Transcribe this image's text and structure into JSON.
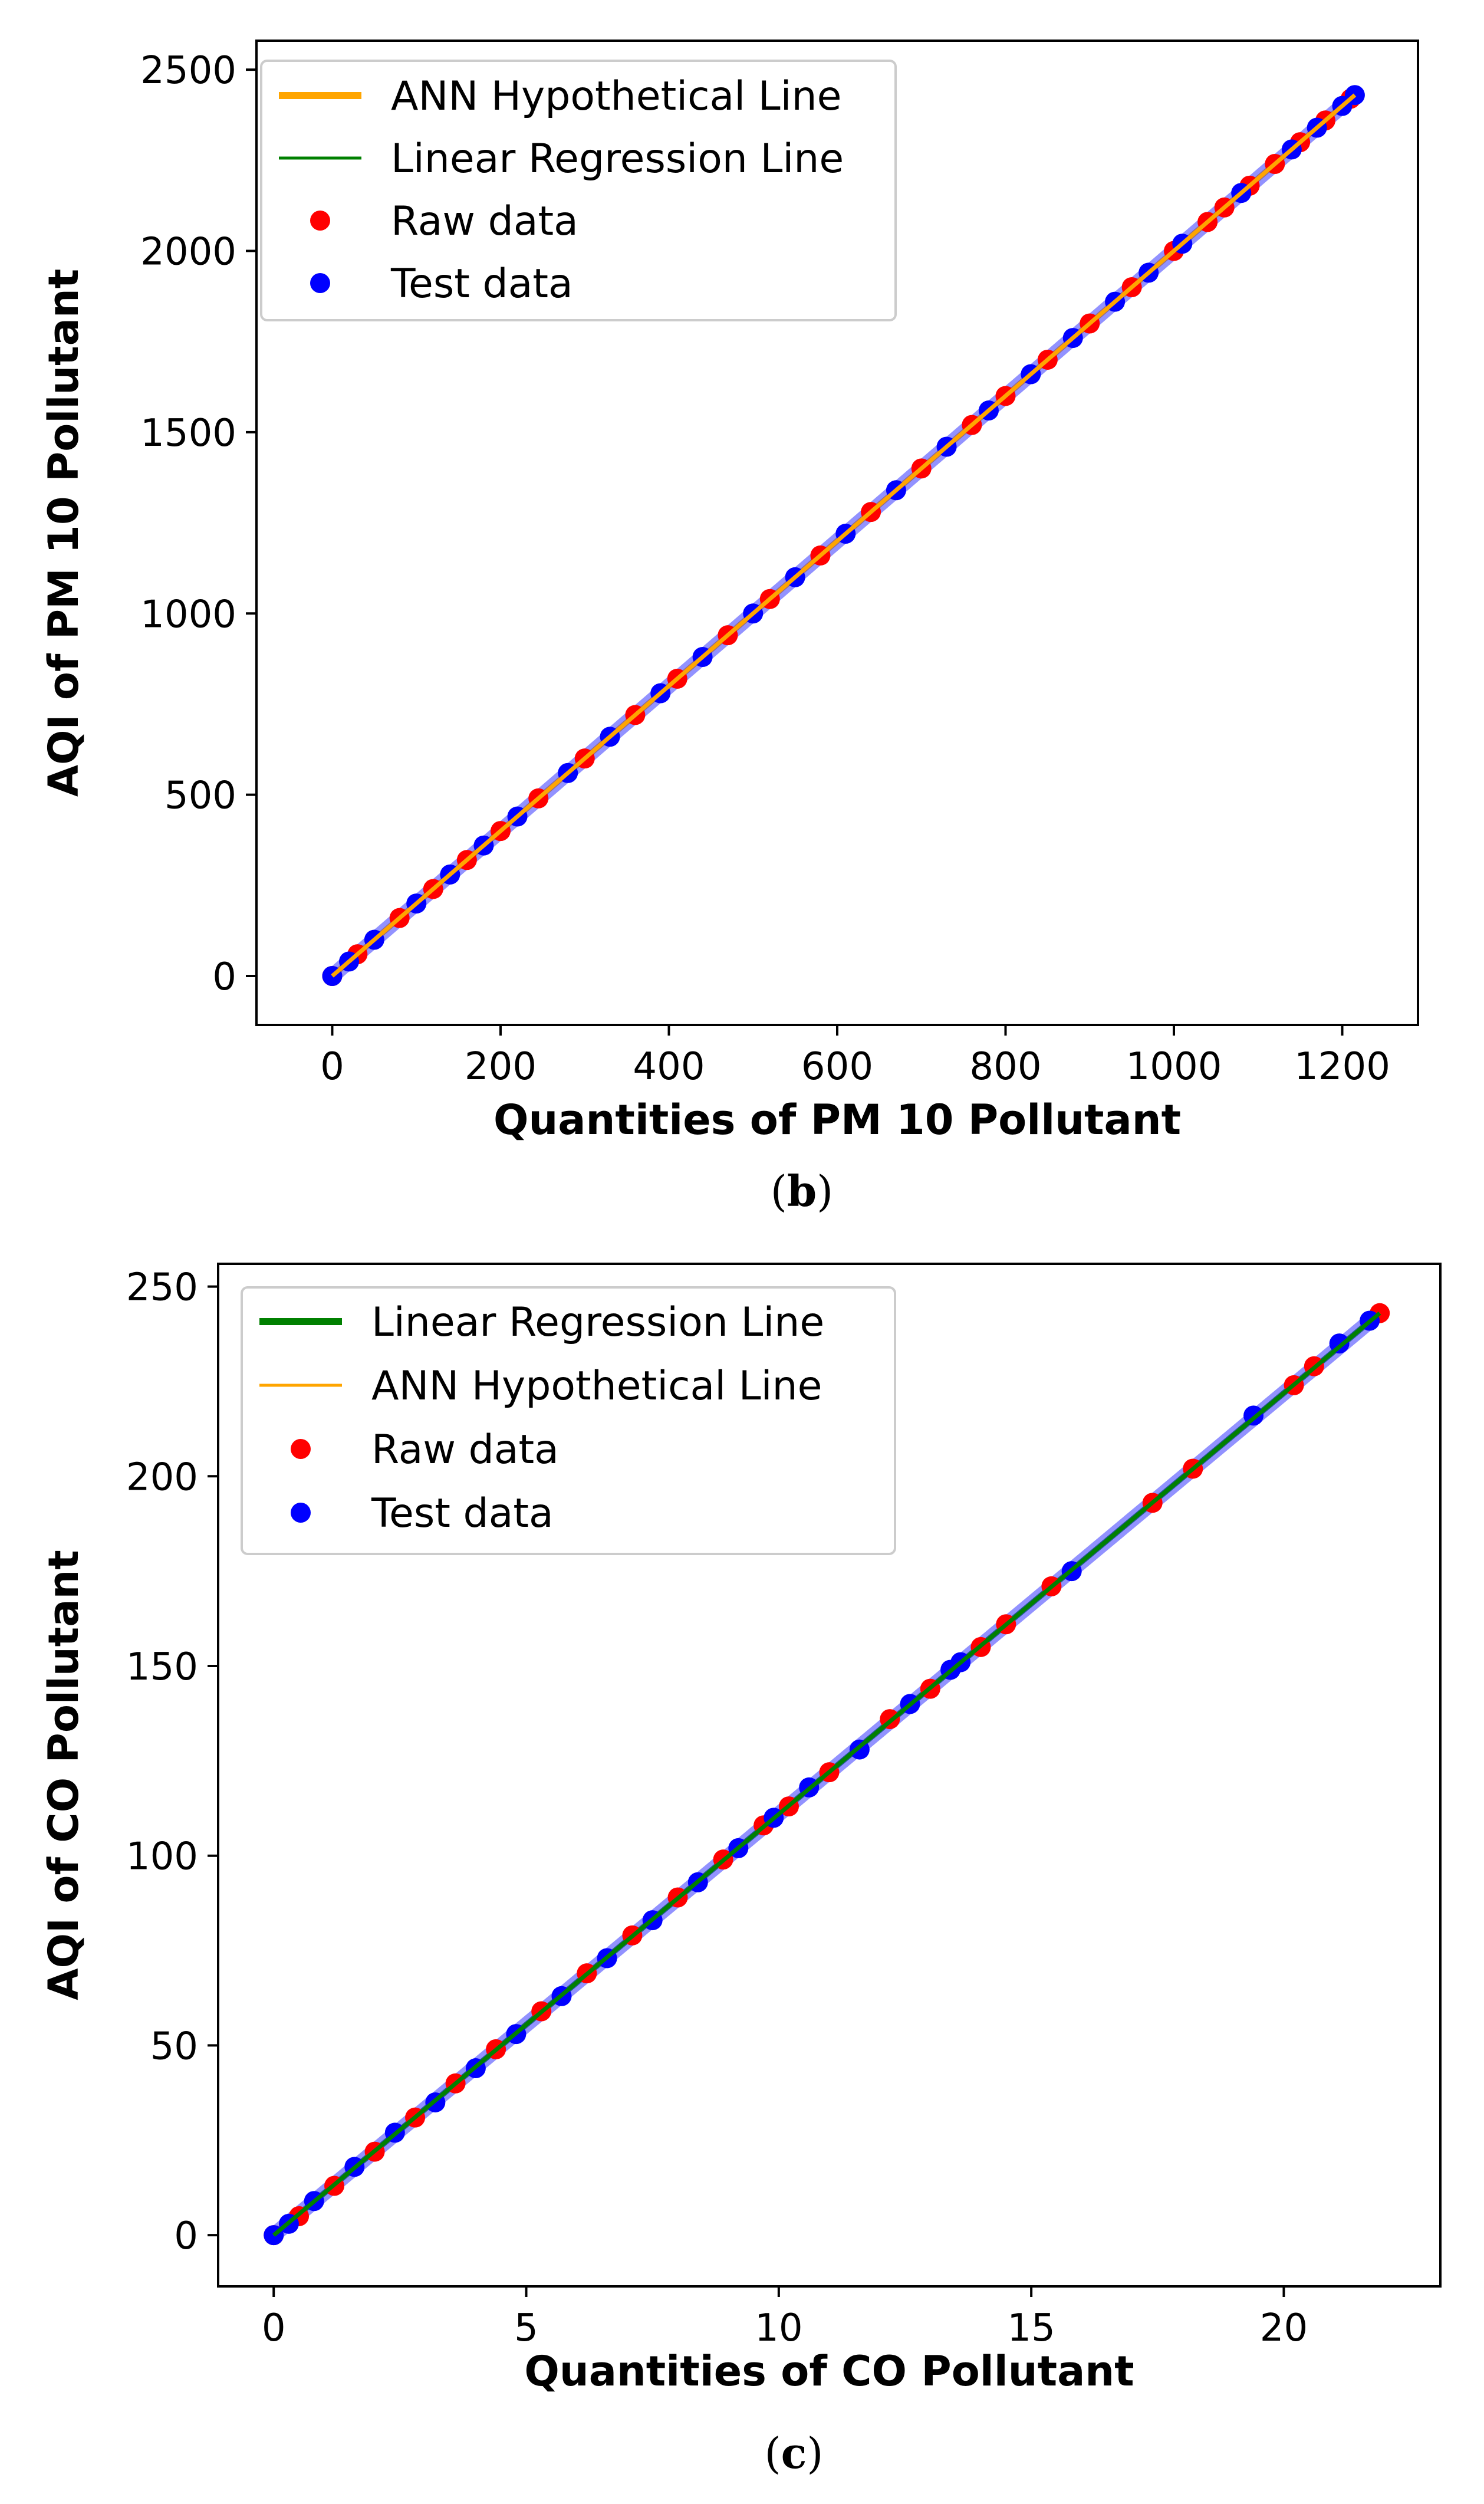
{
  "chart_data": [
    {
      "type": "scatter",
      "panel_label": "b",
      "caption_open": "(",
      "caption_close": ")",
      "xlabel": "Quantities of PM 10 Pollutant",
      "ylabel": "AQI of PM 10 Pollutant",
      "xlim": [
        -90,
        1290
      ],
      "ylim": [
        -135,
        2580
      ],
      "xticks": [
        0,
        200,
        400,
        600,
        800,
        1000,
        1200
      ],
      "yticks": [
        0,
        500,
        1000,
        1500,
        2000,
        2500
      ],
      "grid": false,
      "legend_position": "top-left",
      "legend": [
        {
          "label": "ANN Hypothetical Line",
          "kind": "line",
          "color": "#ffa500",
          "weight": "thick"
        },
        {
          "label": "Linear Regression Line",
          "kind": "line",
          "color": "#008000",
          "weight": "thin"
        },
        {
          "label": "Raw data",
          "kind": "marker",
          "color": "#ff0000"
        },
        {
          "label": "Test data",
          "kind": "marker",
          "color": "#0000ff"
        }
      ],
      "lines": [
        {
          "name": "ANN Hypothetical Line",
          "color": "#ffa500",
          "x": [
            0,
            1215
          ],
          "y": [
            0,
            2430
          ]
        },
        {
          "name": "Linear Regression Line",
          "color": "#008000",
          "x": [
            0,
            1215
          ],
          "y": [
            0,
            2430
          ]
        }
      ],
      "series": [
        {
          "name": "Raw data",
          "color": "#ff0000",
          "x": [
            0,
            30,
            80,
            120,
            160,
            200,
            245,
            300,
            360,
            410,
            470,
            520,
            580,
            640,
            700,
            760,
            800,
            850,
            900,
            950,
            1000,
            1040,
            1060,
            1090,
            1120,
            1150,
            1180,
            1210
          ],
          "y": [
            0,
            60,
            160,
            240,
            320,
            400,
            490,
            600,
            720,
            820,
            940,
            1040,
            1160,
            1280,
            1400,
            1520,
            1600,
            1700,
            1800,
            1900,
            2000,
            2080,
            2120,
            2180,
            2240,
            2300,
            2360,
            2420
          ]
        },
        {
          "name": "Test data",
          "color": "#0000ff",
          "x": [
            0,
            20,
            50,
            100,
            140,
            180,
            220,
            280,
            330,
            390,
            440,
            500,
            550,
            610,
            670,
            730,
            780,
            830,
            880,
            930,
            970,
            1010,
            1080,
            1140,
            1170,
            1200,
            1215
          ],
          "y": [
            0,
            40,
            100,
            200,
            280,
            360,
            440,
            560,
            660,
            780,
            880,
            1000,
            1100,
            1220,
            1340,
            1460,
            1560,
            1660,
            1760,
            1860,
            1940,
            2020,
            2160,
            2280,
            2340,
            2400,
            2430
          ]
        }
      ]
    },
    {
      "type": "scatter",
      "panel_label": "c",
      "caption_open": "(",
      "caption_close": ")",
      "xlabel": "Quantities of CO Pollutant",
      "ylabel": "AQI of CO Pollutant",
      "xlim": [
        -1.1,
        23.1
      ],
      "ylim": [
        -13.5,
        256
      ],
      "xticks": [
        0,
        5,
        10,
        15,
        20
      ],
      "yticks": [
        0,
        50,
        100,
        150,
        200,
        250
      ],
      "grid": false,
      "legend_position": "top-left",
      "legend": [
        {
          "label": "Linear Regression Line",
          "kind": "line",
          "color": "#008000",
          "weight": "thick"
        },
        {
          "label": "ANN Hypothetical Line",
          "kind": "line",
          "color": "#ffa500",
          "weight": "thin"
        },
        {
          "label": "Raw data",
          "kind": "marker",
          "color": "#ff0000"
        },
        {
          "label": "Test data",
          "kind": "marker",
          "color": "#0000ff"
        }
      ],
      "lines": [
        {
          "name": "Linear Regression Line",
          "color": "#008000",
          "x": [
            0,
            21.9
          ],
          "y": [
            0,
            243
          ]
        },
        {
          "name": "ANN Hypothetical Line",
          "color": "#ffa500",
          "x": [
            0,
            21.9
          ],
          "y": [
            0,
            243
          ]
        }
      ],
      "series": [
        {
          "name": "Raw data",
          "color": "#ff0000",
          "x": [
            0,
            0.5,
            1.2,
            2.0,
            2.8,
            3.6,
            4.4,
            5.3,
            6.2,
            7.1,
            8.0,
            8.9,
            9.7,
            10.2,
            11.0,
            12.2,
            13.0,
            14.0,
            14.5,
            15.4,
            17.4,
            18.2,
            20.2,
            20.6,
            21.9
          ],
          "y": [
            0,
            5,
            13,
            22,
            31,
            40,
            49,
            59,
            69,
            79,
            89,
            99,
            108,
            113,
            122,
            136,
            144,
            155,
            161,
            171,
            193,
            202,
            224,
            229,
            243
          ]
        },
        {
          "name": "Test data",
          "color": "#0000ff",
          "x": [
            0,
            0.3,
            0.8,
            1.6,
            2.4,
            3.2,
            4.0,
            4.8,
            5.7,
            6.6,
            7.5,
            8.4,
            9.2,
            9.9,
            10.6,
            11.6,
            12.6,
            13.4,
            13.6,
            15.8,
            19.4,
            21.1,
            21.7
          ],
          "y": [
            0,
            3,
            9,
            18,
            27,
            35,
            44,
            53,
            63,
            73,
            83,
            93,
            102,
            110,
            118,
            128,
            140,
            149,
            151,
            175,
            216,
            235,
            241
          ]
        }
      ]
    }
  ]
}
